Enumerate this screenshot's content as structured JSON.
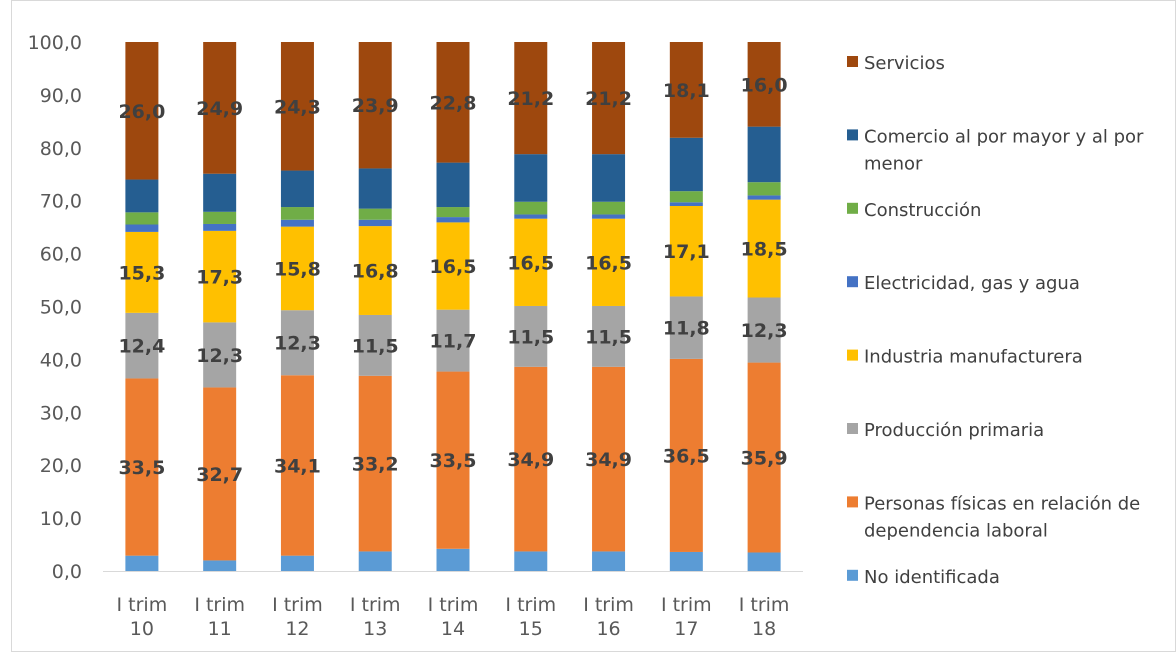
{
  "chart_data": {
    "type": "bar",
    "stacked": true,
    "categories": [
      [
        "I trim",
        "10"
      ],
      [
        "I trim",
        "11"
      ],
      [
        "I trim",
        "12"
      ],
      [
        "I trim",
        "13"
      ],
      [
        "I trim",
        "14"
      ],
      [
        "I trim",
        "15"
      ],
      [
        "I trim",
        "16"
      ],
      [
        "I trim",
        "17"
      ],
      [
        "I trim",
        "18"
      ]
    ],
    "ylim": [
      0,
      100
    ],
    "yticks": [
      "0,0",
      "10,0",
      "20,0",
      "30,0",
      "40,0",
      "50,0",
      "60,0",
      "70,0",
      "80,0",
      "90,0",
      "100,0"
    ],
    "grid": false,
    "legend_position": "right",
    "series": [
      {
        "name": "No identificada",
        "color": "#5B9BD5",
        "values": [
          2.9,
          2.0,
          2.9,
          3.7,
          4.2,
          3.7,
          3.7,
          3.6,
          3.5
        ],
        "labels": null
      },
      {
        "name": "Personas físicas en relación de dependencia laboral",
        "color": "#ED7D31",
        "values": [
          33.5,
          32.7,
          34.1,
          33.2,
          33.5,
          34.9,
          34.9,
          36.5,
          35.9
        ],
        "labels": [
          "33,5",
          "32,7",
          "34,1",
          "33,2",
          "33,5",
          "34,9",
          "34,9",
          "36,5",
          "35,9"
        ]
      },
      {
        "name": "Producción primaria",
        "color": "#A5A5A5",
        "values": [
          12.4,
          12.3,
          12.3,
          11.5,
          11.7,
          11.5,
          11.5,
          11.8,
          12.3
        ],
        "labels": [
          "12,4",
          "12,3",
          "12,3",
          "11,5",
          "11,7",
          "11,5",
          "11,5",
          "11,8",
          "12,3"
        ]
      },
      {
        "name": "Industria manufacturera",
        "color": "#FFC000",
        "values": [
          15.3,
          17.3,
          15.8,
          16.8,
          16.5,
          16.5,
          16.5,
          17.1,
          18.5
        ],
        "labels": [
          "15,3",
          "17,3",
          "15,8",
          "16,8",
          "16,5",
          "16,5",
          "16,5",
          "17,1",
          "18,5"
        ]
      },
      {
        "name": "Electricidad, gas y agua",
        "color": "#4472C4",
        "values": [
          1.4,
          1.3,
          1.3,
          1.2,
          1.0,
          0.8,
          0.8,
          0.7,
          0.8
        ],
        "labels": null
      },
      {
        "name": "Construcción",
        "color": "#70AD47",
        "values": [
          2.3,
          2.3,
          2.4,
          2.1,
          1.9,
          2.4,
          2.4,
          2.1,
          2.5
        ],
        "labels": null
      },
      {
        "name": "Comercio al por mayor y al por menor",
        "color": "#255E91",
        "values": [
          6.2,
          7.2,
          6.9,
          7.6,
          8.4,
          9.0,
          9.0,
          10.1,
          10.5
        ],
        "labels": null
      },
      {
        "name": "Servicios",
        "color": "#9E480E",
        "values": [
          26.0,
          24.9,
          24.3,
          23.9,
          22.8,
          21.2,
          21.2,
          18.1,
          16.0
        ],
        "labels": [
          "26,0",
          "24,9",
          "24,3",
          "23,9",
          "22,8",
          "21,2",
          "21,2",
          "18,1",
          "16,0"
        ]
      }
    ],
    "legend": [
      {
        "series": 7,
        "lines": [
          "Servicios"
        ]
      },
      {
        "series": 6,
        "lines": [
          "Comercio al por mayor y al por",
          "menor"
        ]
      },
      {
        "series": 5,
        "lines": [
          "Construcción"
        ]
      },
      {
        "series": 4,
        "lines": [
          "Electricidad, gas y agua"
        ]
      },
      {
        "series": 3,
        "lines": [
          "Industria manufacturera"
        ]
      },
      {
        "series": 2,
        "lines": [
          "Producción primaria"
        ]
      },
      {
        "series": 1,
        "lines": [
          "Personas físicas en relación de",
          "dependencia laboral"
        ]
      },
      {
        "series": 0,
        "lines": [
          "No identificada"
        ]
      }
    ]
  }
}
